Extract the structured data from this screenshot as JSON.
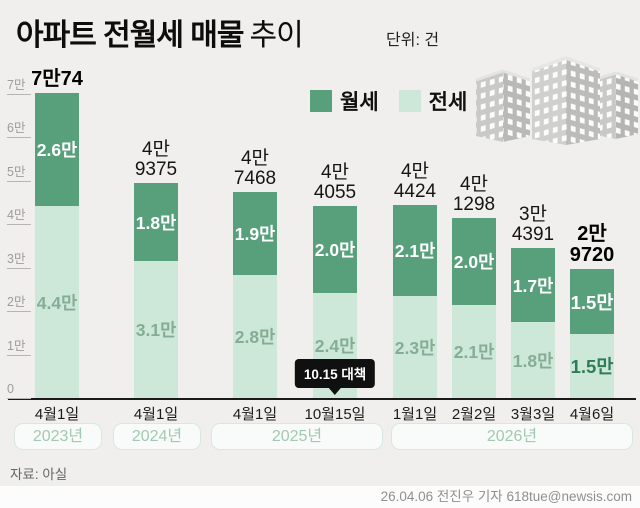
{
  "header": {
    "title_strong": "아파트 전월세 매물",
    "title_light": "추이",
    "unit_label": "단위: 건"
  },
  "icons": {
    "building": "apartment-buildings-icon",
    "callout_pointer": "callout-pointer-icon"
  },
  "footer": {
    "source": "자료: 아실",
    "credit": "26.04.06 전진우 기자 618tue@newsis.com"
  },
  "chart_data": {
    "type": "bar",
    "stacked": true,
    "title": "아파트 전월세 매물 추이",
    "unit": "건",
    "legend_position": "top",
    "grid": false,
    "legend": [
      {
        "name": "월세",
        "color": "#58a07c"
      },
      {
        "name": "전세",
        "color": "#cde7d8"
      }
    ],
    "y_axis": {
      "ylim": [
        0,
        70000
      ],
      "ticks": [
        {
          "label": "7만",
          "value": 70000
        },
        {
          "label": "6만",
          "value": 60000
        },
        {
          "label": "5만",
          "value": 50000
        },
        {
          "label": "4만",
          "value": 40000
        },
        {
          "label": "3만",
          "value": 30000
        },
        {
          "label": "2만",
          "value": 20000
        },
        {
          "label": "1만",
          "value": 10000
        },
        {
          "label": "0",
          "value": 0
        }
      ]
    },
    "categories": [
      "4월1일",
      "4월1일",
      "4월1일",
      "10월15일",
      "1월1일",
      "2월2일",
      "3월3일",
      "4월6일"
    ],
    "bars": [
      {
        "date": "4월1일",
        "total": 70074,
        "total_label": [
          "7만74"
        ],
        "wolse_man": 2.6,
        "jeonse_man": 4.4,
        "wolse_label": "2.6만",
        "jeonse_label": "4.4만",
        "total_bold": true,
        "labels_bold": false
      },
      {
        "date": "4월1일",
        "total": 49375,
        "total_label": [
          "4만",
          "9375"
        ],
        "wolse_man": 1.8,
        "jeonse_man": 3.1,
        "wolse_label": "1.8만",
        "jeonse_label": "3.1만",
        "total_bold": false,
        "labels_bold": false
      },
      {
        "date": "4월1일",
        "total": 47468,
        "total_label": [
          "4만",
          "7468"
        ],
        "wolse_man": 1.9,
        "jeonse_man": 2.8,
        "wolse_label": "1.9만",
        "jeonse_label": "2.8만",
        "total_bold": false,
        "labels_bold": false
      },
      {
        "date": "10월15일",
        "total": 44055,
        "total_label": [
          "4만",
          "4055"
        ],
        "wolse_man": 2.0,
        "jeonse_man": 2.4,
        "wolse_label": "2.0만",
        "jeonse_label": "2.4만",
        "total_bold": false,
        "labels_bold": false
      },
      {
        "date": "1월1일",
        "total": 44424,
        "total_label": [
          "4만",
          "4424"
        ],
        "wolse_man": 2.1,
        "jeonse_man": 2.3,
        "wolse_label": "2.1만",
        "jeonse_label": "2.3만",
        "total_bold": false,
        "labels_bold": false
      },
      {
        "date": "2월2일",
        "total": 41298,
        "total_label": [
          "4만",
          "1298"
        ],
        "wolse_man": 2.0,
        "jeonse_man": 2.1,
        "wolse_label": "2.0만",
        "jeonse_label": "2.1만",
        "total_bold": false,
        "labels_bold": false
      },
      {
        "date": "3월3일",
        "total": 34391,
        "total_label": [
          "3만",
          "4391"
        ],
        "wolse_man": 1.7,
        "jeonse_man": 1.8,
        "wolse_label": "1.7만",
        "jeonse_label": "1.8만",
        "total_bold": false,
        "labels_bold": false
      },
      {
        "date": "4월6일",
        "total": 29720,
        "total_label": [
          "2만",
          "9720"
        ],
        "wolse_man": 1.5,
        "jeonse_man": 1.5,
        "wolse_label": "1.5만",
        "jeonse_label": "1.5만",
        "total_bold": true,
        "labels_bold": true
      }
    ],
    "year_groups": [
      {
        "label": "2023년",
        "bars": 1
      },
      {
        "label": "2024년",
        "bars": 1
      },
      {
        "label": "2025년",
        "bars": 2
      },
      {
        "label": "2026년",
        "bars": 4
      }
    ],
    "callout": {
      "text": "10.15 대책",
      "bar_index": 3
    }
  }
}
